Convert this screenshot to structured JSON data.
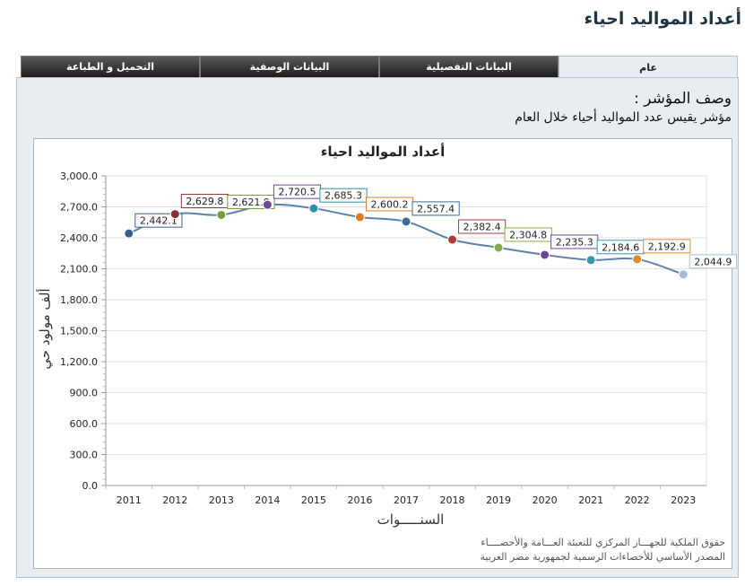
{
  "page": {
    "title": "أعداد المواليد احياء"
  },
  "tabs": [
    {
      "label": "عام",
      "active": true
    },
    {
      "label": "البيانات التفصيلية",
      "active": false
    },
    {
      "label": "البيانات الوصفية",
      "active": false
    },
    {
      "label": "التحميل و الطباعة",
      "active": false
    }
  ],
  "description": {
    "heading": "وصف المؤشر :",
    "text": "مؤشر يقيس عدد المواليد أحياء خلال العام"
  },
  "footer": {
    "line1": "حقوق الملكية للجهـــاز المركزي للتعبئة العـــامة والأحصــــاء",
    "line2": "المصدر الأساسي للأحصاءات الرسمية لجمهورية مصر العربية"
  },
  "chart_data": {
    "type": "line",
    "title": "أعداد المواليد احياء",
    "xlabel": "السنـــــوات",
    "ylabel": "ألف مولود حي",
    "x": [
      "2011",
      "2012",
      "2013",
      "2014",
      "2015",
      "2016",
      "2017",
      "2018",
      "2019",
      "2020",
      "2021",
      "2022",
      "2023"
    ],
    "values": [
      2442.1,
      2629.8,
      2621.9,
      2720.5,
      2685.3,
      2600.2,
      2557.4,
      2382.4,
      2304.8,
      2235.3,
      2184.6,
      2192.9,
      2044.9
    ],
    "labels": [
      "2,442.1",
      "2,629.8",
      "2,621.9",
      "2,720.5",
      "2,685.3",
      "2,600.2",
      "2,557.4",
      "2,382.4",
      "2,304.8",
      "2,235.3",
      "2,184.6",
      "2,192.9",
      "2,044.9"
    ],
    "point_colors": [
      "#3a5f8f",
      "#8e2f35",
      "#7a9a3e",
      "#6a4a8e",
      "#2f8fa6",
      "#e07b22",
      "#3a6a9a",
      "#b03a3a",
      "#8aaa4a",
      "#6a4a8e",
      "#2f9aae",
      "#e08a2a",
      "#a8bcd6"
    ],
    "ylim": [
      0,
      3000
    ],
    "yticks": [
      0,
      300,
      600,
      900,
      1200,
      1500,
      1800,
      2100,
      2400,
      2700,
      3000
    ],
    "ytick_labels": [
      "0.0",
      "300.0",
      "600.0",
      "900.0",
      "1,200.0",
      "1,500.0",
      "1,800.0",
      "2,100.0",
      "2,400.0",
      "2,700.0",
      "3,000.0"
    ],
    "line_color": "#5b82ab",
    "grid": true
  }
}
